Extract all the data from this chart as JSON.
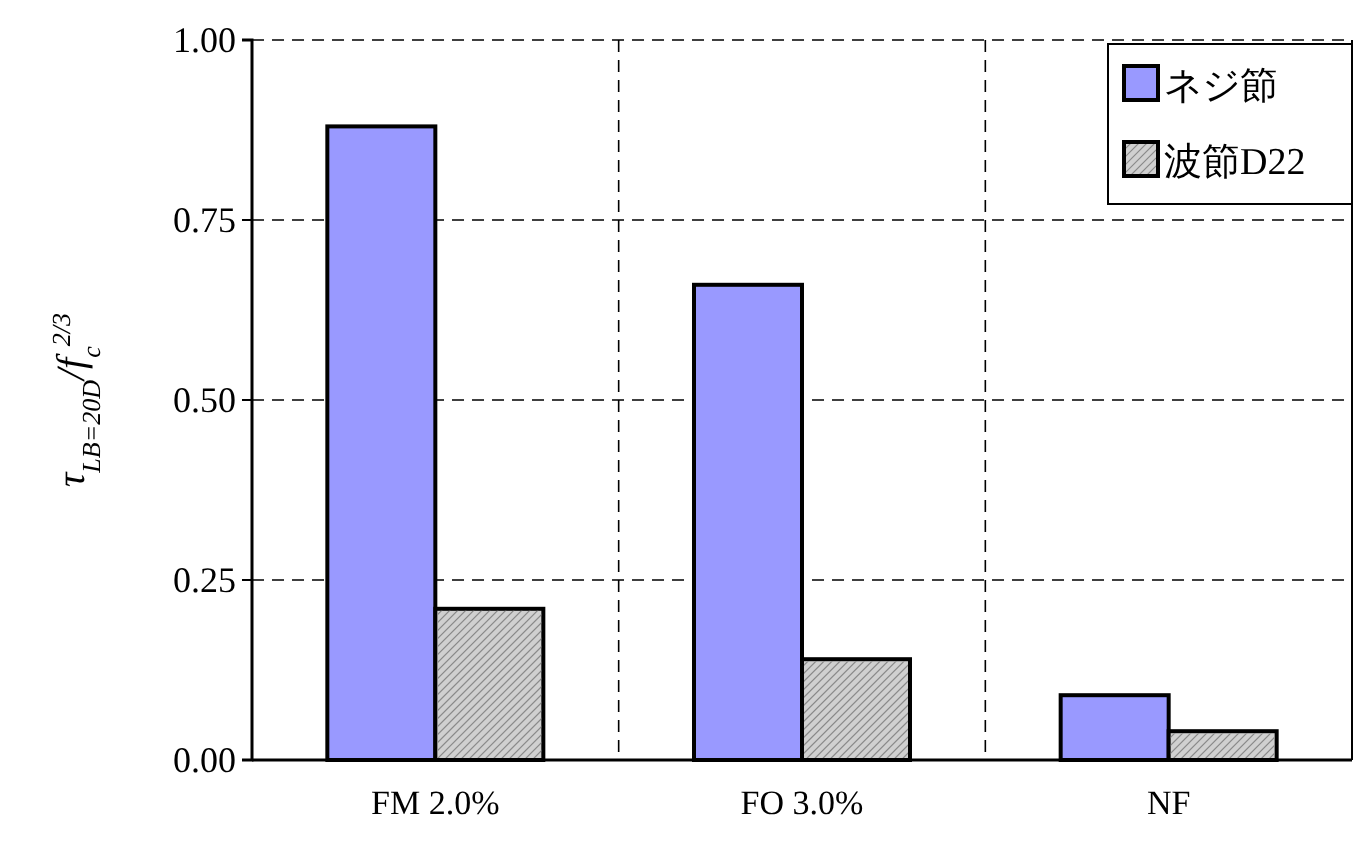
{
  "chart_data": {
    "type": "bar",
    "ylabel": "τ$_{LB=20D}$/f$_{c}$$^{2/3}$",
    "categories": [
      "FM 2.0%",
      "FO 3.0%",
      "NF"
    ],
    "series": [
      {
        "name": "ネジ節",
        "color": "#9999ff",
        "values": [
          0.88,
          0.66,
          0.09
        ]
      },
      {
        "name": "波節D22",
        "color": "#d0d0d0",
        "values": [
          0.21,
          0.14,
          0.04
        ]
      }
    ],
    "ylim": [
      0,
      1
    ],
    "yticks": [
      {
        "value": 0,
        "label": "0.00"
      },
      {
        "value": 0.25,
        "label": "0.25"
      },
      {
        "value": 0.5,
        "label": "0.50"
      },
      {
        "value": 0.75,
        "label": "0.75"
      },
      {
        "value": 1,
        "label": "1.00"
      }
    ],
    "grid": true,
    "legend": "top right"
  }
}
